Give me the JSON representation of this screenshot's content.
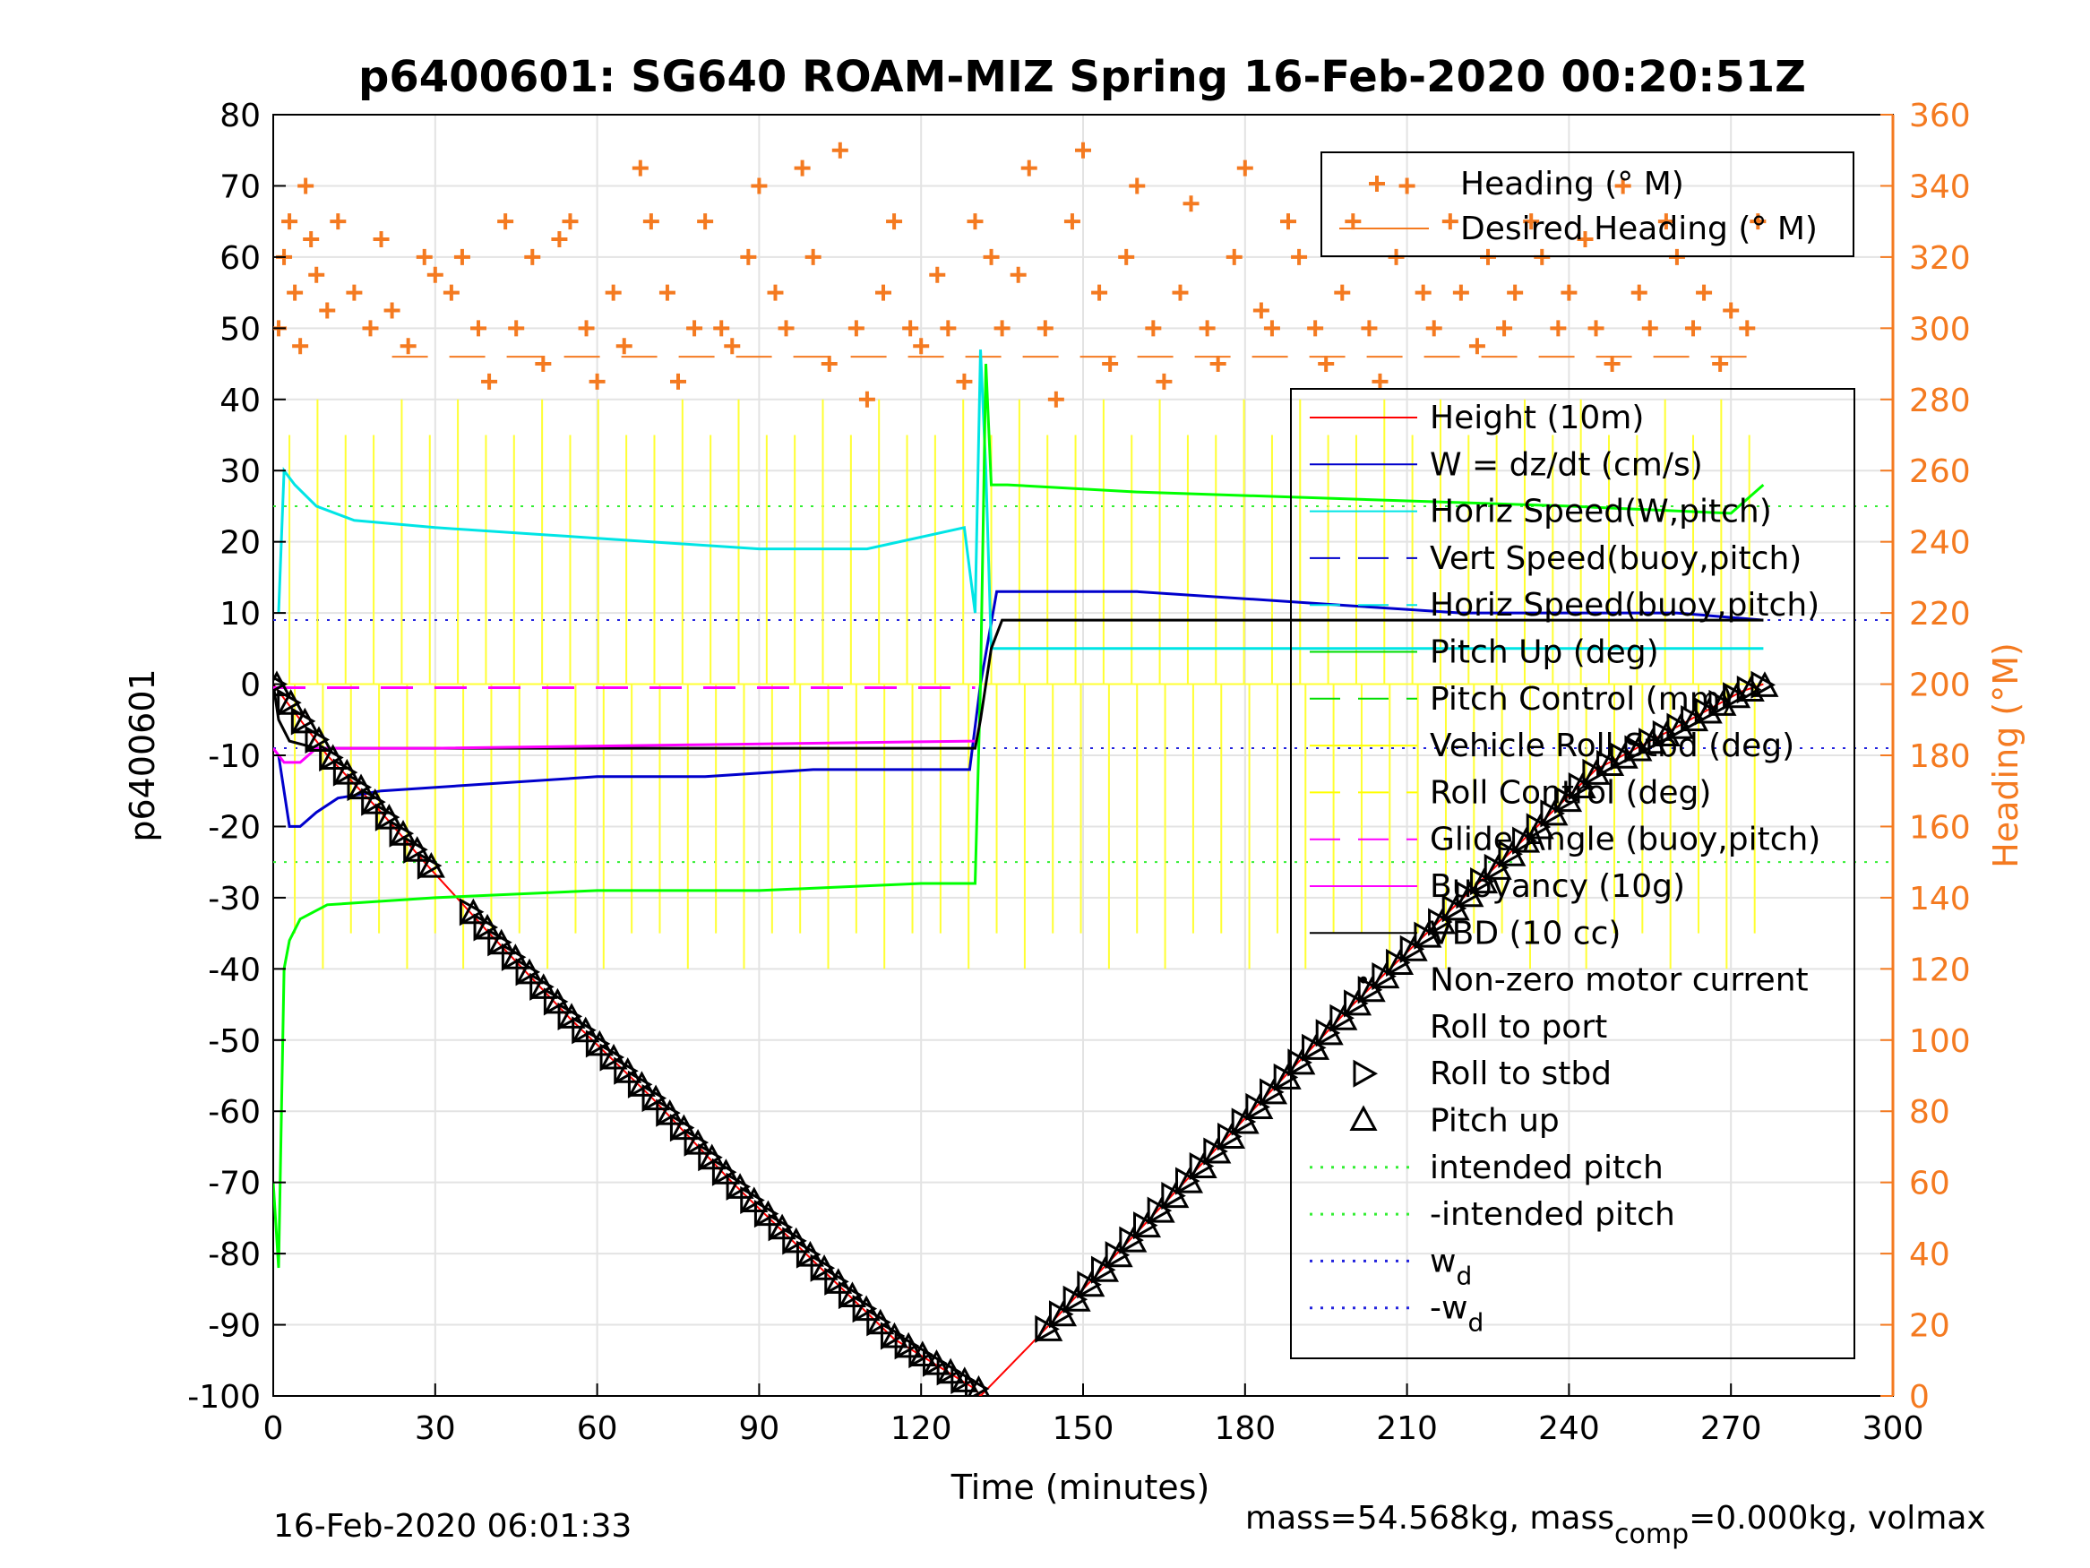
{
  "chart_data": {
    "type": "line",
    "title": "p6400601: SG640 ROAM-MIZ Spring 16-Feb-2020 00:20:51Z",
    "xlabel": "Time (minutes)",
    "ylabel": "p6400601",
    "ylabel_right": "Heading (°M)",
    "xlim": [
      0,
      300
    ],
    "ylim": [
      -100,
      80
    ],
    "ylim_right": [
      0,
      360
    ],
    "x_ticks": [
      0,
      30,
      60,
      90,
      120,
      150,
      180,
      210,
      240,
      270,
      300
    ],
    "y_ticks": [
      80,
      70,
      60,
      50,
      40,
      30,
      20,
      10,
      0,
      -10,
      -20,
      -30,
      -40,
      -50,
      -60,
      -70,
      -80,
      -90,
      -100
    ],
    "y_ticks_right": [
      360,
      340,
      320,
      300,
      280,
      260,
      240,
      220,
      200,
      180,
      160,
      140,
      120,
      100,
      80,
      60,
      40,
      20,
      0
    ],
    "grid": true,
    "legend_heading": [
      {
        "label": "Heading (° M)",
        "color": "#f47a20",
        "style": "plus"
      },
      {
        "label": "Desired Heading (° M)",
        "color": "#f47a20",
        "style": "solid"
      }
    ],
    "legend_main": [
      {
        "label": "Height (10m)",
        "color": "#ff0000",
        "style": "solid"
      },
      {
        "label": "W = dz/dt (cm/s)",
        "color": "#0000cc",
        "style": "solid"
      },
      {
        "label": "Horiz Speed(W,pitch)",
        "color": "#00e5e5",
        "style": "solid"
      },
      {
        "label": "Vert Speed(buoy,pitch)",
        "color": "#0000cc",
        "style": "dashed"
      },
      {
        "label": "Horiz Speed(buoy,pitch)",
        "color": "#00e5e5",
        "style": "dashed"
      },
      {
        "label": "Pitch Up (deg)",
        "color": "#00dd00",
        "style": "solid"
      },
      {
        "label": "Pitch Control (mm)",
        "color": "#00dd00",
        "style": "dashed"
      },
      {
        "label": "Vehicle Roll Stbd (deg)",
        "color": "#ffff00",
        "style": "solid"
      },
      {
        "label": "Roll Control (deg)",
        "color": "#ffff00",
        "style": "dashed"
      },
      {
        "label": "Glide Angle (buoy,pitch)",
        "color": "#ff00ff",
        "style": "dashed"
      },
      {
        "label": "Buoyancy (10g)",
        "color": "#ff00ff",
        "style": "solid"
      },
      {
        "label": "VBD (10 cc)",
        "color": "#000000",
        "style": "solid"
      },
      {
        "label": "Non-zero motor current",
        "color": "#000000",
        "style": "dot"
      },
      {
        "label": "Roll to port",
        "color": "#000000",
        "style": "none"
      },
      {
        "label": "Roll to stbd",
        "color": "#000000",
        "style": "tri-right"
      },
      {
        "label": "Pitch up",
        "color": "#000000",
        "style": "tri-up"
      },
      {
        "label": "intended pitch",
        "color": "#33ee33",
        "style": "dotted"
      },
      {
        "label": "-intended pitch",
        "color": "#33ee33",
        "style": "dotted"
      },
      {
        "label": "w",
        "sub": "d",
        "color": "#2222dd",
        "style": "dotted"
      },
      {
        "label": "-w",
        "sub": "d",
        "color": "#2222dd",
        "style": "dotted"
      }
    ],
    "series": [
      {
        "name": "Height (10m)",
        "color": "#ff0000",
        "x": [
          0,
          10,
          20,
          28,
          40,
          55,
          70,
          85,
          100,
          115,
          130,
          131,
          140,
          155,
          170,
          185,
          200,
          215,
          230,
          245,
          260,
          272,
          276
        ],
        "y": [
          0,
          -10,
          -18,
          -25,
          -35,
          -47,
          -58,
          -70,
          -81,
          -92,
          -99,
          -100,
          -93,
          -81,
          -69,
          -57,
          -45,
          -34,
          -23,
          -12,
          -6,
          -1,
          0
        ]
      },
      {
        "name": "W = dz/dt (cm/s)",
        "color": "#0000cc",
        "x": [
          1,
          3,
          5,
          8,
          12,
          20,
          40,
          60,
          80,
          100,
          120,
          129,
          131,
          134,
          140,
          160,
          180,
          200,
          220,
          240,
          260,
          276
        ],
        "y": [
          -10,
          -20,
          -20,
          -18,
          -16,
          -15,
          -14,
          -13,
          -13,
          -12,
          -12,
          -12,
          0,
          13,
          13,
          13,
          12,
          11,
          10,
          10,
          10,
          9
        ]
      },
      {
        "name": "Horiz Speed(W,pitch)",
        "color": "#00e5e5",
        "x": [
          1,
          2,
          4,
          8,
          15,
          30,
          50,
          70,
          90,
          110,
          128,
          130,
          131,
          132,
          133,
          135,
          276
        ],
        "y": [
          10,
          30,
          28,
          25,
          23,
          22,
          21,
          20,
          19,
          19,
          22,
          10,
          47,
          30,
          5,
          5,
          5
        ]
      },
      {
        "name": "Pitch Up (deg)",
        "color": "#00ff00",
        "x": [
          0,
          1,
          2,
          3,
          5,
          10,
          30,
          60,
          90,
          120,
          130,
          131,
          132,
          133,
          136,
          160,
          200,
          240,
          270,
          276
        ],
        "y": [
          -70,
          -82,
          -40,
          -36,
          -33,
          -31,
          -30,
          -29,
          -29,
          -28,
          -28,
          0,
          45,
          28,
          28,
          27,
          26,
          25,
          24,
          28
        ]
      },
      {
        "name": "VBD (10 cc)",
        "color": "#000000",
        "x": [
          0,
          1,
          3,
          8,
          30,
          80,
          130,
          131,
          133,
          135,
          276
        ],
        "y": [
          0,
          -5,
          -8,
          -9,
          -9,
          -9,
          -9,
          -5,
          5,
          9,
          9
        ]
      },
      {
        "name": "Buoyancy (10g)",
        "color": "#ff00ff",
        "x": [
          0,
          2,
          5,
          8,
          30,
          80,
          130
        ],
        "y": [
          -9,
          -11,
          -11,
          -9,
          -9,
          -8.5,
          -8
        ]
      },
      {
        "name": "Glide Angle (buoy,pitch)",
        "color": "#ff00ff",
        "dashed": true,
        "x": [
          0,
          130
        ],
        "y": [
          -0.5,
          -0.5
        ]
      }
    ],
    "reference_lines": {
      "intended_pitch": 25,
      "neg_intended_pitch": -25,
      "w_d": 9,
      "neg_w_d": -9
    },
    "heading": {
      "desired": 292,
      "samples_x": [
        1,
        2,
        3,
        4,
        5,
        6,
        7,
        8,
        10,
        12,
        15,
        18,
        20,
        22,
        25,
        28,
        30,
        33,
        35,
        38,
        40,
        43,
        45,
        48,
        50,
        53,
        55,
        58,
        60,
        63,
        65,
        68,
        70,
        73,
        75,
        78,
        80,
        83,
        85,
        88,
        90,
        93,
        95,
        98,
        100,
        103,
        105,
        108,
        110,
        113,
        115,
        118,
        120,
        123,
        125,
        128,
        130,
        133,
        135,
        138,
        140,
        143,
        145,
        148,
        150,
        153,
        155,
        158,
        160,
        163,
        165,
        168,
        170,
        173,
        175,
        178,
        180,
        183,
        185,
        188,
        190,
        193,
        195,
        198,
        200,
        203,
        205,
        208,
        210,
        213,
        215,
        218,
        220,
        223,
        225,
        228,
        230,
        233,
        235,
        238,
        240,
        243,
        245,
        248,
        250,
        253,
        255,
        258,
        260,
        263,
        265,
        268,
        270,
        273,
        275
      ],
      "samples_y": [
        300,
        320,
        330,
        310,
        295,
        340,
        325,
        315,
        305,
        330,
        310,
        300,
        325,
        305,
        295,
        320,
        315,
        310,
        320,
        300,
        285,
        330,
        300,
        320,
        290,
        325,
        330,
        300,
        285,
        310,
        295,
        345,
        330,
        310,
        285,
        300,
        330,
        300,
        295,
        320,
        340,
        310,
        300,
        345,
        320,
        290,
        350,
        300,
        280,
        310,
        330,
        300,
        295,
        315,
        300,
        285,
        330,
        320,
        300,
        315,
        345,
        300,
        280,
        330,
        350,
        310,
        290,
        320,
        340,
        300,
        285,
        310,
        335,
        300,
        290,
        320,
        345,
        305,
        300,
        330,
        320,
        300,
        290,
        310,
        330,
        300,
        285,
        320,
        340,
        310,
        300,
        330,
        310,
        295,
        320,
        300,
        310,
        330,
        320,
        300,
        310,
        325,
        300,
        290,
        340,
        310,
        300,
        330,
        320,
        300,
        310,
        290,
        305,
        300,
        330
      ]
    },
    "annotations": {
      "footer_left": "16-Feb-2020 06:01:33",
      "footer_right_prefix": "mass=54.568kg, mass",
      "footer_right_sub": "comp",
      "footer_right_suffix": "=0.000kg, volmax"
    }
  }
}
